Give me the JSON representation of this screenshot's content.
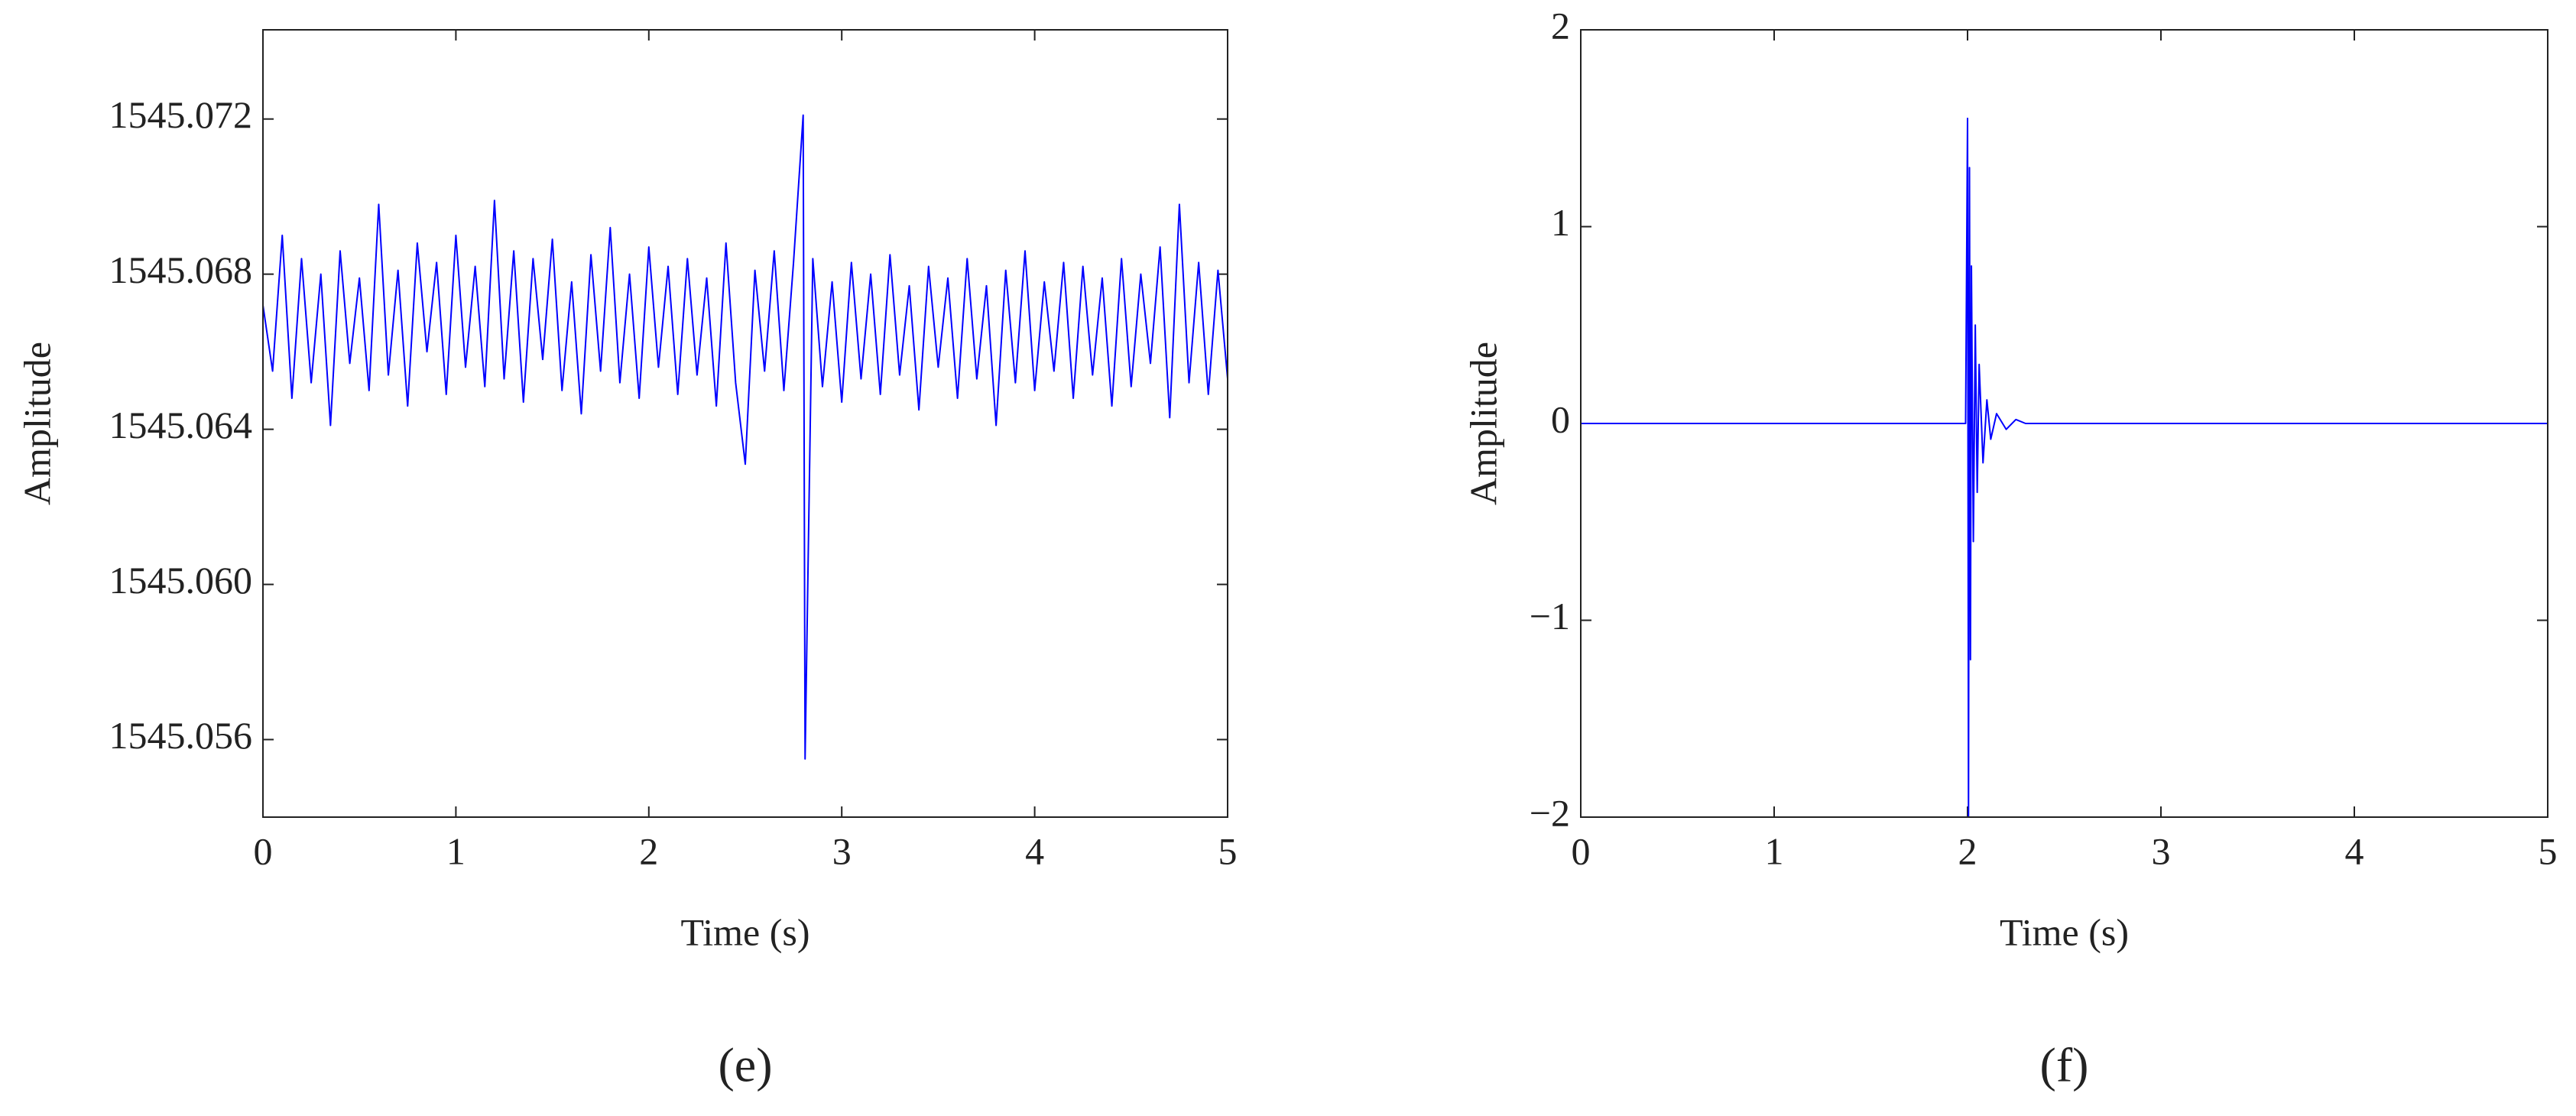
{
  "chart_data": [
    {
      "type": "line",
      "label": "(e)",
      "xlabel": "Time (s)",
      "ylabel": "Amplitude",
      "xlim": [
        0,
        5
      ],
      "xticks": [
        0,
        1,
        2,
        3,
        4,
        5
      ],
      "ylim": [
        1545.054,
        1545.0743
      ],
      "yticks": [
        1545.056,
        {
          "value": 1545.06,
          "label": "1545.060"
        },
        1545.064,
        1545.068,
        1545.072
      ],
      "x": [
        0,
        0.05,
        0.1,
        0.15,
        0.2,
        0.25,
        0.3,
        0.35,
        0.4,
        0.45,
        0.5,
        0.55,
        0.6,
        0.65,
        0.7,
        0.75,
        0.8,
        0.85,
        0.9,
        0.95,
        1,
        1.05,
        1.1,
        1.15,
        1.2,
        1.25,
        1.3,
        1.35,
        1.4,
        1.45,
        1.5,
        1.55,
        1.6,
        1.65,
        1.7,
        1.75,
        1.8,
        1.85,
        1.9,
        1.95,
        2,
        2.05,
        2.1,
        2.15,
        2.2,
        2.25,
        2.3,
        2.35,
        2.4,
        2.45,
        2.5,
        2.55,
        2.6,
        2.65,
        2.7,
        2.75,
        2.8,
        2.81,
        2.85,
        2.9,
        2.95,
        3,
        3.05,
        3.1,
        3.15,
        3.2,
        3.25,
        3.3,
        3.35,
        3.4,
        3.45,
        3.5,
        3.55,
        3.6,
        3.65,
        3.7,
        3.75,
        3.8,
        3.85,
        3.9,
        3.95,
        4,
        4.05,
        4.1,
        4.15,
        4.2,
        4.25,
        4.3,
        4.35,
        4.4,
        4.45,
        4.5,
        4.55,
        4.6,
        4.65,
        4.7,
        4.75,
        4.8,
        4.85,
        4.9,
        4.95,
        5
      ],
      "series": [
        {
          "color": "#0000ff",
          "values": [
            1545.0672,
            1545.0655,
            1545.069,
            1545.0648,
            1545.0684,
            1545.0652,
            1545.068,
            1545.0641,
            1545.0686,
            1545.0657,
            1545.0679,
            1545.065,
            1545.0698,
            1545.0654,
            1545.0681,
            1545.0646,
            1545.0688,
            1545.066,
            1545.0683,
            1545.0649,
            1545.069,
            1545.0656,
            1545.0682,
            1545.0651,
            1545.0699,
            1545.0653,
            1545.0686,
            1545.0647,
            1545.0684,
            1545.0658,
            1545.0689,
            1545.065,
            1545.0678,
            1545.0644,
            1545.0685,
            1545.0655,
            1545.0692,
            1545.0652,
            1545.068,
            1545.0648,
            1545.0687,
            1545.0656,
            1545.0682,
            1545.0649,
            1545.0684,
            1545.0654,
            1545.0679,
            1545.0646,
            1545.0688,
            1545.0652,
            1545.0631,
            1545.0681,
            1545.0655,
            1545.0686,
            1545.065,
            1545.0683,
            1545.0721,
            1545.0555,
            1545.0684,
            1545.0651,
            1545.0678,
            1545.0647,
            1545.0683,
            1545.0653,
            1545.068,
            1545.0649,
            1545.0685,
            1545.0654,
            1545.0677,
            1545.0645,
            1545.0682,
            1545.0656,
            1545.0679,
            1545.0648,
            1545.0684,
            1545.0653,
            1545.0677,
            1545.0641,
            1545.0681,
            1545.0652,
            1545.0686,
            1545.065,
            1545.0678,
            1545.0655,
            1545.0683,
            1545.0648,
            1545.0682,
            1545.0654,
            1545.0679,
            1545.0646,
            1545.0684,
            1545.0651,
            1545.068,
            1545.0657,
            1545.0687,
            1545.0643,
            1545.0698,
            1545.0652,
            1545.0683,
            1545.0649,
            1545.0681,
            1545.0653
          ]
        }
      ]
    },
    {
      "type": "line",
      "label": "(f)",
      "xlabel": "Time (s)",
      "ylabel": "Amplitude",
      "xlim": [
        0,
        5
      ],
      "xticks": [
        0,
        1,
        2,
        3,
        4,
        5
      ],
      "ylim": [
        -2,
        2
      ],
      "yticks": [
        {
          "value": -2,
          "label": "−2"
        },
        {
          "value": -1,
          "label": "−1"
        },
        0,
        1,
        2
      ],
      "x": [
        0,
        1,
        1.99,
        2,
        2.005,
        2.01,
        2.015,
        2.02,
        2.03,
        2.04,
        2.05,
        2.06,
        2.08,
        2.1,
        2.12,
        2.15,
        2.2,
        2.25,
        2.3,
        3,
        4,
        5
      ],
      "series": [
        {
          "color": "#0000ff",
          "values": [
            0,
            0,
            0,
            1.55,
            -2,
            1.3,
            -1.2,
            0.8,
            -0.6,
            0.5,
            -0.35,
            0.3,
            -0.2,
            0.12,
            -0.08,
            0.05,
            -0.03,
            0.02,
            0,
            0,
            0,
            0
          ]
        }
      ]
    }
  ]
}
